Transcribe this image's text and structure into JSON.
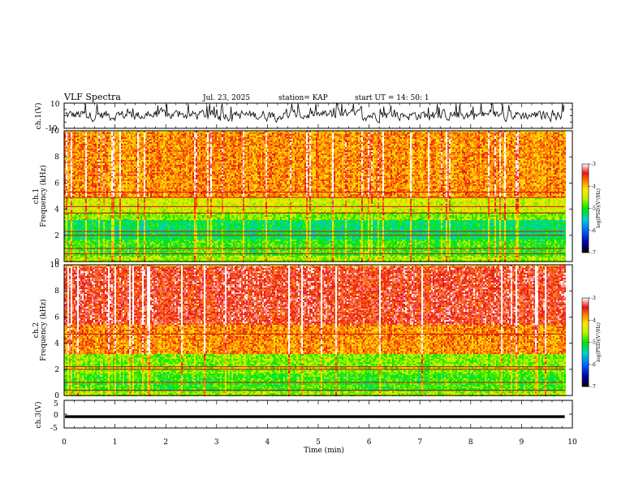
{
  "header": {
    "title": "VLF Spectra",
    "date": "Jul. 23, 2025",
    "station": "station= KAP",
    "start": "start UT =  14: 50: 1"
  },
  "chart_data": [
    {
      "type": "line",
      "name": "ch1-waveform",
      "ylabel": "ch.1(V)",
      "ylim": [
        -10,
        10
      ],
      "ytick_labels": [
        "10",
        "-10"
      ],
      "xlim": [
        0,
        10
      ],
      "series": [
        {
          "name": "ch.1",
          "description": "noisy amplitude trace",
          "approx_range": [
            -6,
            9
          ]
        }
      ]
    },
    {
      "type": "heatmap",
      "name": "ch1-spectrogram",
      "ylabel": "ch.1 Frequency (kHz)",
      "ylim": [
        0,
        10
      ],
      "ytick_labels": [
        "0",
        "2",
        "4",
        "6",
        "8",
        "10"
      ],
      "xlim": [
        0,
        9.85
      ],
      "colorbar": {
        "label": "log(PSD)(V²/Hz)",
        "range": [
          -7,
          -3
        ],
        "tick_labels": [
          "-3",
          "-4",
          "-5",
          "-6",
          "-7"
        ]
      },
      "bands": [
        {
          "freq": [
            0,
            0.5
          ],
          "log_psd": -4.6
        },
        {
          "freq": [
            0.5,
            1.8
          ],
          "log_psd": -4.9
        },
        {
          "freq": [
            1.8,
            3.2
          ],
          "log_psd": -5.2
        },
        {
          "freq": [
            3.2,
            3.8
          ],
          "log_psd": -4.7
        },
        {
          "freq": [
            3.8,
            5.0
          ],
          "log_psd": -4.4
        },
        {
          "freq": [
            5.0,
            10.0
          ],
          "log_psd": -3.8
        }
      ],
      "lines_khz": [
        0.6,
        1.0,
        2.0,
        2.3,
        3.7,
        4.2,
        4.9,
        5.3
      ]
    },
    {
      "type": "heatmap",
      "name": "ch2-spectrogram",
      "ylabel": "ch.2 Frequency (kHz)",
      "ylim": [
        0,
        10
      ],
      "ytick_labels": [
        "0",
        "2",
        "4",
        "6",
        "8",
        "10"
      ],
      "xlim": [
        0,
        9.85
      ],
      "colorbar": {
        "label": "log(PSD)(V²/Hz)",
        "range": [
          -7,
          -3
        ],
        "tick_labels": [
          "-3",
          "-4",
          "-5",
          "-6",
          "-7"
        ]
      },
      "bands": [
        {
          "freq": [
            0,
            0.4
          ],
          "log_psd": -4.6
        },
        {
          "freq": [
            0.4,
            1.8
          ],
          "log_psd": -4.9
        },
        {
          "freq": [
            1.8,
            3.2
          ],
          "log_psd": -4.7
        },
        {
          "freq": [
            3.2,
            5.5
          ],
          "log_psd": -3.8
        },
        {
          "freq": [
            5.5,
            10.0
          ],
          "log_psd": -3.4
        }
      ],
      "lines_khz": [
        0.4,
        1.0,
        2.0,
        2.2,
        4.7
      ]
    },
    {
      "type": "line",
      "name": "ch3-waveform",
      "ylabel": "ch.3(V)",
      "ylim": [
        -5,
        5
      ],
      "ytick_labels": [
        "5",
        "0",
        "-5"
      ],
      "xlim": [
        0,
        10
      ],
      "series": [
        {
          "name": "ch.3",
          "description": "dense trace",
          "approx_range": [
            -1.4,
            -0.4
          ]
        }
      ]
    }
  ],
  "xaxis": {
    "label": "Time (min)",
    "range": [
      0,
      10
    ],
    "tick_labels": [
      "0",
      "1",
      "2",
      "3",
      "4",
      "5",
      "6",
      "7",
      "8",
      "9",
      "10"
    ]
  },
  "colors": {
    "line": "#000000"
  }
}
